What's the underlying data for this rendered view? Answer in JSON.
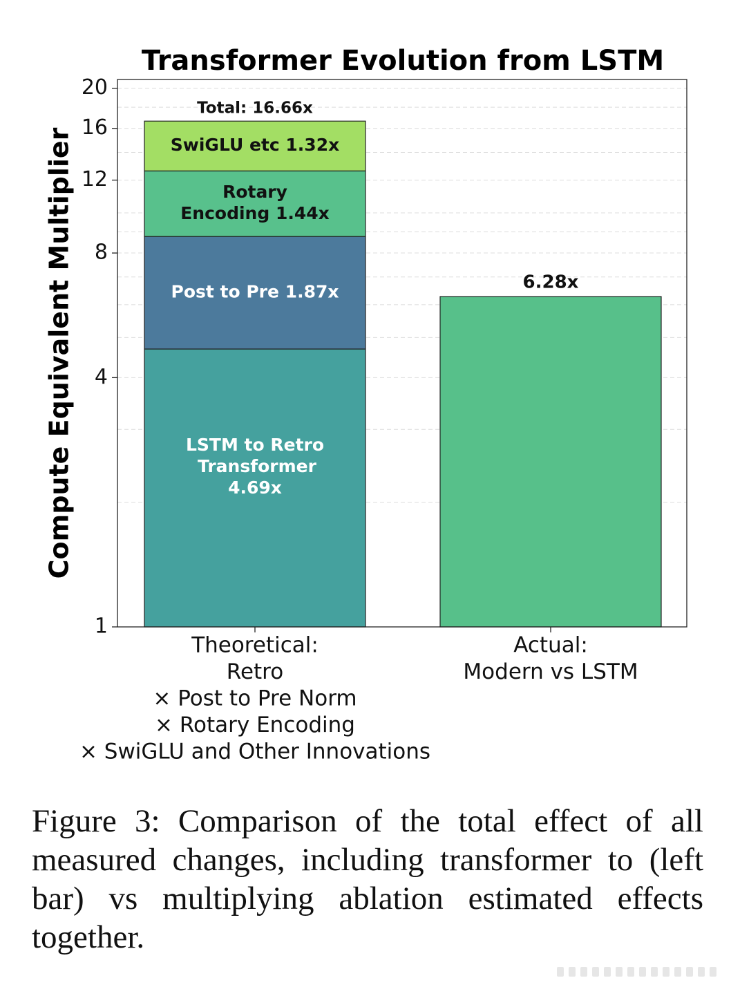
{
  "chart_data": {
    "type": "bar",
    "title": "Transformer Evolution from LSTM",
    "ylabel": "Compute Equivalent Multiplier",
    "xlabel": "",
    "yscale": "log",
    "ylim": [
      1,
      21
    ],
    "yticks": [
      1,
      4,
      8,
      12,
      16,
      20
    ],
    "grid": "horizontal dashed",
    "categories": [
      [
        "Theoretical:",
        "Retro",
        "× Post to Pre Norm",
        "× Rotary Encoding",
        "× SwiGLU and Other Innovations"
      ],
      [
        "Actual:",
        "Modern vs LSTM"
      ]
    ],
    "stacked_bar": {
      "category_index": 0,
      "segments": [
        {
          "label": [
            "LSTM to Retro",
            "Transformer",
            "4.69x"
          ],
          "factor": 4.69,
          "bottom": 1.0,
          "top": 4.69,
          "color": "#45a19e",
          "text_color": "#ffffff"
        },
        {
          "label": [
            "Post to Pre 1.87x"
          ],
          "factor": 1.87,
          "bottom": 4.69,
          "top": 8.77,
          "color": "#4c7a9c",
          "text_color": "#ffffff"
        },
        {
          "label": [
            "Rotary",
            "Encoding 1.44x"
          ],
          "factor": 1.44,
          "bottom": 8.77,
          "top": 12.63,
          "color": "#58c18c",
          "text_color": "#111111"
        },
        {
          "label": [
            "SwiGLU etc 1.32x"
          ],
          "factor": 1.32,
          "bottom": 12.63,
          "top": 16.66,
          "color": "#a3de64",
          "text_color": "#111111"
        }
      ],
      "total_label": "Total: 16.66x",
      "total": 16.66
    },
    "single_bar": {
      "category_index": 1,
      "value": 6.28,
      "label": "6.28x",
      "color": "#57c08a"
    }
  },
  "caption": "Figure 3:  Comparison of the total effect of all measured changes, including transformer to (left bar) vs multiplying ablation estimated effects together."
}
